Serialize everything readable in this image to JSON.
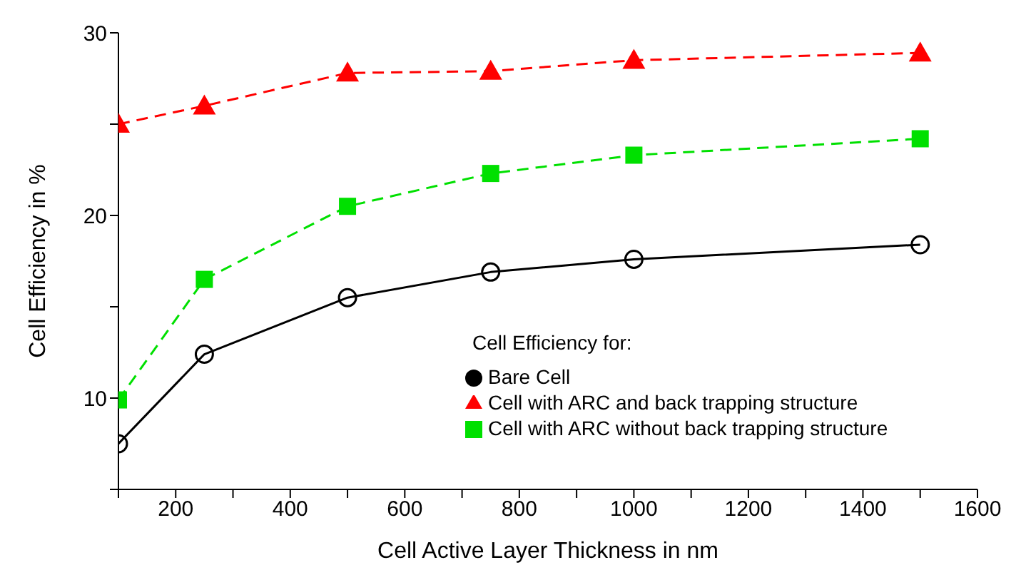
{
  "chart_data": {
    "type": "line",
    "xlabel": "Cell Active Layer Thickness in nm",
    "ylabel": "Cell Efficiency in %",
    "legend_title": "Cell Efficiency for:",
    "legend": "bottom right",
    "grid": false,
    "x": [
      100,
      250,
      500,
      750,
      1000,
      1500
    ],
    "xlim": [
      100,
      1600
    ],
    "xticks": [
      {
        "value": 100,
        "label": null
      },
      200,
      {
        "value": 300,
        "label": null
      },
      400,
      {
        "value": 500,
        "label": null
      },
      600,
      {
        "value": 700,
        "label": null
      },
      800,
      {
        "value": 900,
        "label": null
      },
      1000,
      {
        "value": 1100,
        "label": null
      },
      1200,
      {
        "value": 1300,
        "label": null
      },
      1400,
      {
        "value": 1500,
        "label": null
      },
      1600
    ],
    "ylim": [
      5,
      30
    ],
    "yticks": [
      {
        "value": 5,
        "label": null
      },
      10,
      {
        "value": 15,
        "label": null
      },
      20,
      {
        "value": 25,
        "label": null
      },
      30
    ],
    "series": [
      {
        "name": "Bare Cell",
        "color": "#000000",
        "marker": "circle",
        "line_style": "solid",
        "values": [
          7.5,
          12.4,
          15.5,
          16.9,
          17.6,
          18.4
        ]
      },
      {
        "name": "Cell with ARC without back trapping structure",
        "color": "#00e000",
        "marker": "square",
        "line_style": "dashed",
        "values": [
          9.9,
          16.5,
          20.5,
          22.3,
          23.3,
          24.2
        ]
      },
      {
        "name": "Cell with ARC and back trapping structure",
        "color": "#ff0000",
        "marker": "triangle",
        "line_style": "dashed",
        "values": [
          25.0,
          26.0,
          27.8,
          27.9,
          28.5,
          28.9
        ]
      }
    ]
  }
}
